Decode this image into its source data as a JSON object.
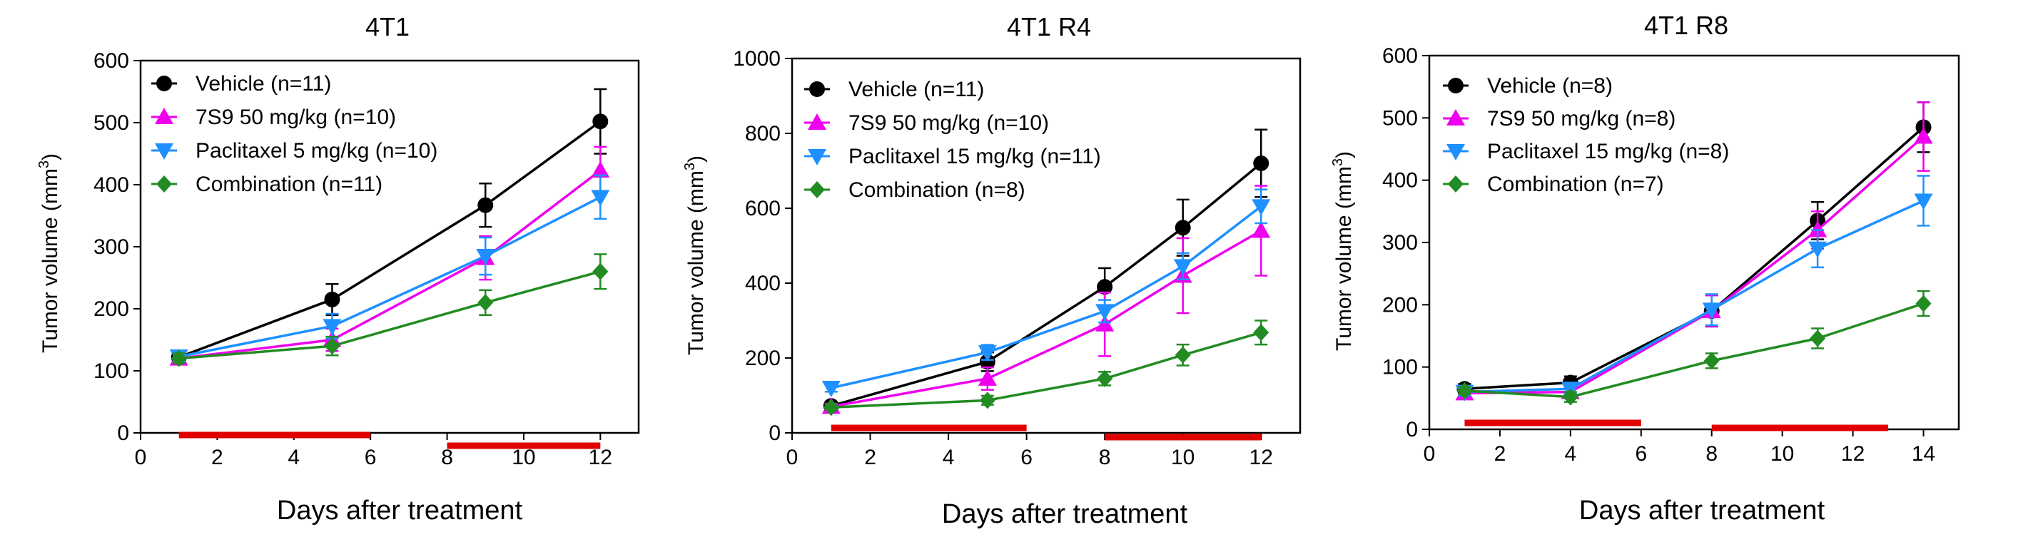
{
  "figure": {
    "background": "#ffffff"
  },
  "chart_data": [
    {
      "type": "line",
      "title": "4T1",
      "xlabel": "Days after treatment",
      "ylabel": "Tumor volume (mm",
      "ylabel_sup": "3",
      "ylabel_end": ")",
      "xlim": [
        0,
        13
      ],
      "ylim": [
        0,
        600
      ],
      "xticks": [
        0,
        2,
        4,
        6,
        8,
        10,
        12
      ],
      "yticks": [
        0,
        100,
        200,
        300,
        400,
        500,
        600
      ],
      "legend_position": "top-left",
      "series": [
        {
          "name": "Vehicle (n=11)",
          "color": "#000000",
          "marker": "circle",
          "x": [
            1,
            5,
            9,
            12
          ],
          "y": [
            122,
            215,
            367,
            502
          ],
          "err": [
            10,
            25,
            35,
            52
          ]
        },
        {
          "name": "7S9 50 mg/kg (n=10)",
          "color": "#ee00ee",
          "marker": "triangle-up",
          "x": [
            1,
            5,
            9,
            12
          ],
          "y": [
            120,
            150,
            282,
            423
          ],
          "err": [
            8,
            18,
            35,
            38
          ]
        },
        {
          "name": "Paclitaxel 5 mg/kg (n=10)",
          "color": "#1e90ff",
          "marker": "triangle-down",
          "x": [
            1,
            5,
            9,
            12
          ],
          "y": [
            123,
            172,
            285,
            380
          ],
          "err": [
            8,
            20,
            30,
            35
          ]
        },
        {
          "name": "Combination (n=11)",
          "color": "#228b22",
          "marker": "diamond",
          "x": [
            1,
            5,
            9,
            12
          ],
          "y": [
            120,
            140,
            210,
            260
          ],
          "err": [
            8,
            15,
            20,
            28
          ]
        }
      ],
      "treatment_periods": [
        [
          1,
          6
        ],
        [
          8,
          12
        ]
      ],
      "treatment_color": "#e00000"
    },
    {
      "type": "line",
      "title": "4T1 R4",
      "xlabel": "Days after treatment",
      "ylabel": "Tumor volume (mm",
      "ylabel_sup": "3",
      "ylabel_end": ")",
      "xlim": [
        0,
        13
      ],
      "ylim": [
        0,
        1000
      ],
      "xticks": [
        0,
        2,
        4,
        6,
        8,
        10,
        12
      ],
      "yticks": [
        0,
        200,
        400,
        600,
        800,
        1000
      ],
      "legend_position": "top-left",
      "series": [
        {
          "name": "Vehicle (n=11)",
          "color": "#000000",
          "marker": "circle",
          "x": [
            1,
            5,
            8,
            10,
            12
          ],
          "y": [
            72,
            190,
            390,
            548,
            720
          ],
          "err": [
            10,
            25,
            50,
            75,
            90
          ]
        },
        {
          "name": "7S9 50 mg/kg (n=10)",
          "color": "#ee00ee",
          "marker": "triangle-up",
          "x": [
            1,
            5,
            8,
            10,
            12
          ],
          "y": [
            70,
            145,
            290,
            420,
            540
          ],
          "err": [
            8,
            30,
            85,
            100,
            120
          ]
        },
        {
          "name": "Paclitaxel 15 mg/kg (n=11)",
          "color": "#1e90ff",
          "marker": "triangle-down",
          "x": [
            1,
            5,
            8,
            10,
            12
          ],
          "y": [
            120,
            215,
            325,
            445,
            605
          ],
          "err": [
            10,
            20,
            30,
            35,
            45
          ]
        },
        {
          "name": "Combination (n=8)",
          "color": "#228b22",
          "marker": "diamond",
          "x": [
            1,
            5,
            8,
            10,
            12
          ],
          "y": [
            68,
            87,
            145,
            208,
            268
          ],
          "err": [
            8,
            12,
            18,
            28,
            32
          ]
        }
      ],
      "treatment_periods": [
        [
          1,
          6
        ],
        [
          8,
          12
        ]
      ],
      "treatment_color": "#e00000"
    },
    {
      "type": "line",
      "title": "4T1 R8",
      "xlabel": "Days after treatment",
      "ylabel": "Tumor volume (mm",
      "ylabel_sup": "3",
      "ylabel_end": ")",
      "xlim": [
        0,
        15
      ],
      "ylim": [
        0,
        600
      ],
      "xticks": [
        0,
        2,
        4,
        6,
        8,
        10,
        12,
        14
      ],
      "yticks": [
        0,
        100,
        200,
        300,
        400,
        500,
        600
      ],
      "legend_position": "top-left",
      "series": [
        {
          "name": "Vehicle (n=8)",
          "color": "#000000",
          "marker": "circle",
          "x": [
            1,
            4,
            8,
            11,
            14
          ],
          "y": [
            65,
            75,
            190,
            335,
            485
          ],
          "err": [
            8,
            10,
            25,
            30,
            40
          ]
        },
        {
          "name": "7S9 50 mg/kg (n=8)",
          "color": "#ee00ee",
          "marker": "triangle-up",
          "x": [
            1,
            4,
            8,
            11,
            14
          ],
          "y": [
            58,
            60,
            190,
            320,
            470
          ],
          "err": [
            6,
            8,
            25,
            30,
            55
          ]
        },
        {
          "name": "Paclitaxel 15 mg/kg (n=8)",
          "color": "#1e90ff",
          "marker": "triangle-down",
          "x": [
            1,
            4,
            8,
            11,
            14
          ],
          "y": [
            60,
            65,
            192,
            290,
            367
          ],
          "err": [
            6,
            8,
            25,
            30,
            40
          ]
        },
        {
          "name": "Combination (n=7)",
          "color": "#228b22",
          "marker": "diamond",
          "x": [
            1,
            4,
            8,
            11,
            14
          ],
          "y": [
            62,
            52,
            110,
            146,
            202
          ],
          "err": [
            6,
            8,
            12,
            16,
            20
          ]
        }
      ],
      "treatment_periods": [
        [
          1,
          6
        ],
        [
          8,
          13
        ]
      ],
      "treatment_color": "#e00000"
    }
  ]
}
